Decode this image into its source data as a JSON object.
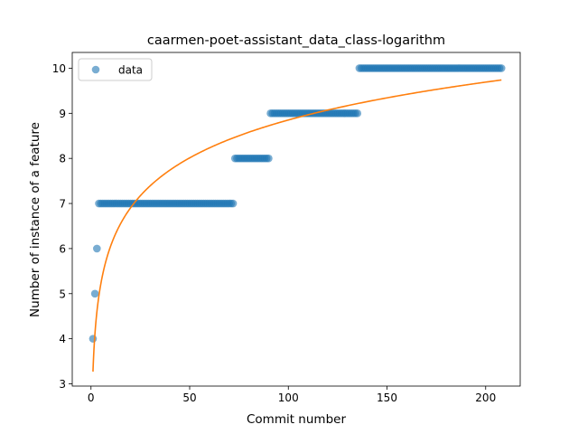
{
  "chart_data": {
    "type": "scatter",
    "title": "caarmen-poet-assistant_data_class-logarithm",
    "xlabel": "Commit number",
    "ylabel": "Number of instance of a feature",
    "xlim": [
      -9.5,
      217.5
    ],
    "ylim": [
      2.95,
      10.35
    ],
    "xticks": [
      0,
      50,
      100,
      150,
      200
    ],
    "yticks": [
      3,
      4,
      5,
      6,
      7,
      8,
      9,
      10
    ],
    "legend": {
      "position": "upper-left",
      "entries": [
        "data"
      ]
    },
    "series": [
      {
        "name": "data",
        "kind": "scatter",
        "color": "#1f77b4",
        "runs": [
          {
            "x_start": 1,
            "x_end": 1,
            "y": 4
          },
          {
            "x_start": 2,
            "x_end": 2,
            "y": 5
          },
          {
            "x_start": 3,
            "x_end": 3,
            "y": 6
          },
          {
            "x_start": 4,
            "x_end": 72,
            "y": 7
          },
          {
            "x_start": 73,
            "x_end": 90,
            "y": 8
          },
          {
            "x_start": 91,
            "x_end": 135,
            "y": 9
          },
          {
            "x_start": 136,
            "x_end": 208,
            "y": 10
          }
        ]
      },
      {
        "kind": "fit",
        "color": "#ff7f0e",
        "function": "a + b*ln(x)",
        "a": 3.27,
        "b": 1.212,
        "x_range": [
          1,
          208
        ]
      }
    ]
  }
}
